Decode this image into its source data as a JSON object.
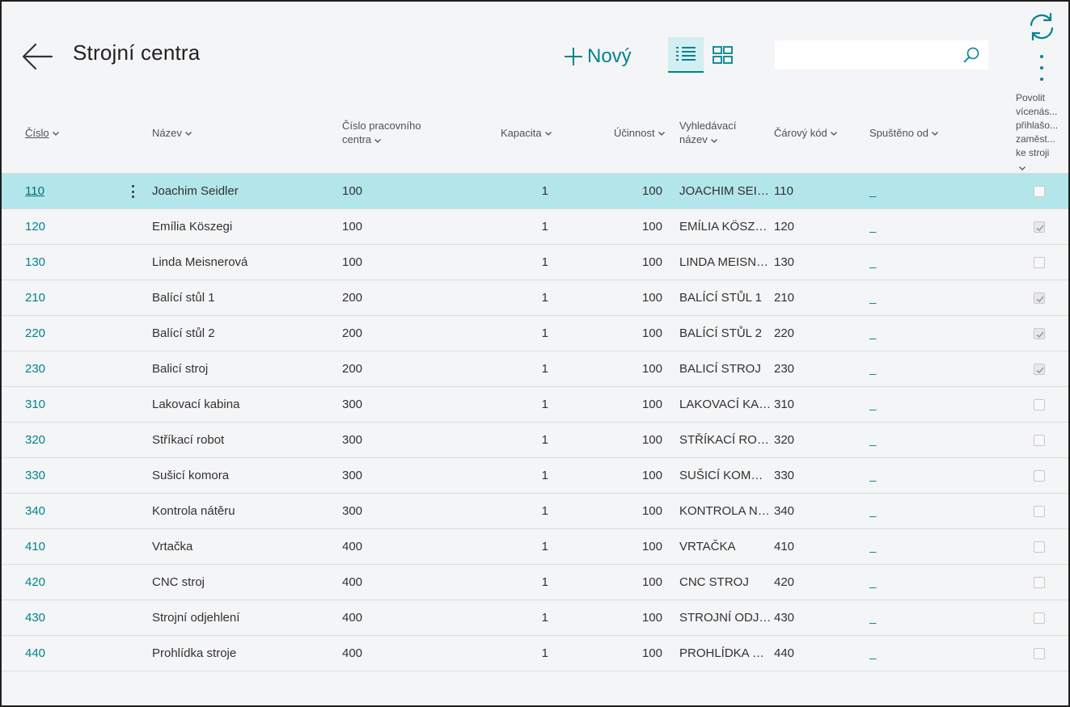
{
  "header": {
    "title": "Strojní centra",
    "new_label": "Nový",
    "search_placeholder": "",
    "accent": "#00838f"
  },
  "columns": [
    {
      "label": "Číslo"
    },
    {
      "label": "Název"
    },
    {
      "label_lines": [
        "Číslo pracovního",
        "centra"
      ]
    },
    {
      "label": "Kapacita"
    },
    {
      "label": "Účinnost"
    },
    {
      "label_lines": [
        "Vyhledávací",
        "název"
      ]
    },
    {
      "label": "Čárový kód"
    },
    {
      "label": "Spuštěno od"
    },
    {
      "label_lines": [
        "Povolit",
        "vícenás...",
        "přihlašo...",
        "zaměst...",
        "ke stroji"
      ]
    }
  ],
  "rows": [
    {
      "no": "110",
      "name": "Joachim Seidler",
      "wc": "100",
      "capacity": "1",
      "efficiency": "100",
      "search": "JOACHIM SEIDLER",
      "barcode": "110",
      "started": "_",
      "allow_multi": false,
      "selected": true
    },
    {
      "no": "120",
      "name": "Emília Köszegi",
      "wc": "100",
      "capacity": "1",
      "efficiency": "100",
      "search": "EMÍLIA KÖSZEGI",
      "barcode": "120",
      "started": "_",
      "allow_multi": true
    },
    {
      "no": "130",
      "name": "Linda Meisnerová",
      "wc": "100",
      "capacity": "1",
      "efficiency": "100",
      "search": "LINDA MEISNEROVÁ",
      "barcode": "130",
      "started": "_",
      "allow_multi": false
    },
    {
      "no": "210",
      "name": "Balící stůl 1",
      "wc": "200",
      "capacity": "1",
      "efficiency": "100",
      "search": "BALÍCÍ STŮL 1",
      "barcode": "210",
      "started": "_",
      "allow_multi": true
    },
    {
      "no": "220",
      "name": "Balící stůl 2",
      "wc": "200",
      "capacity": "1",
      "efficiency": "100",
      "search": "BALÍCÍ STŮL 2",
      "barcode": "220",
      "started": "_",
      "allow_multi": true
    },
    {
      "no": "230",
      "name": "Balicí stroj",
      "wc": "200",
      "capacity": "1",
      "efficiency": "100",
      "search": "BALICÍ STROJ",
      "barcode": "230",
      "started": "_",
      "allow_multi": true
    },
    {
      "no": "310",
      "name": "Lakovací kabina",
      "wc": "300",
      "capacity": "1",
      "efficiency": "100",
      "search": "LAKOVACÍ KABINA",
      "barcode": "310",
      "started": "_",
      "allow_multi": false
    },
    {
      "no": "320",
      "name": "Stříkací robot",
      "wc": "300",
      "capacity": "1",
      "efficiency": "100",
      "search": "STŘÍKACÍ ROBOT",
      "barcode": "320",
      "started": "_",
      "allow_multi": false
    },
    {
      "no": "330",
      "name": "Sušicí komora",
      "wc": "300",
      "capacity": "1",
      "efficiency": "100",
      "search": "SUŠICÍ KOMORA",
      "barcode": "330",
      "started": "_",
      "allow_multi": false
    },
    {
      "no": "340",
      "name": "Kontrola nátěru",
      "wc": "300",
      "capacity": "1",
      "efficiency": "100",
      "search": "KONTROLA NÁTĚRU",
      "barcode": "340",
      "started": "_",
      "allow_multi": false
    },
    {
      "no": "410",
      "name": "Vrtačka",
      "wc": "400",
      "capacity": "1",
      "efficiency": "100",
      "search": "VRTAČKA",
      "barcode": "410",
      "started": "_",
      "allow_multi": false
    },
    {
      "no": "420",
      "name": "CNC stroj",
      "wc": "400",
      "capacity": "1",
      "efficiency": "100",
      "search": "CNC STROJ",
      "barcode": "420",
      "started": "_",
      "allow_multi": false
    },
    {
      "no": "430",
      "name": "Strojní odjehlení",
      "wc": "400",
      "capacity": "1",
      "efficiency": "100",
      "search": "STROJNÍ ODJEHLENÍ",
      "barcode": "430",
      "started": "_",
      "allow_multi": false
    },
    {
      "no": "440",
      "name": "Prohlídka stroje",
      "wc": "400",
      "capacity": "1",
      "efficiency": "100",
      "search": "PROHLÍDKA STROJE",
      "barcode": "440",
      "started": "_",
      "allow_multi": false
    }
  ]
}
